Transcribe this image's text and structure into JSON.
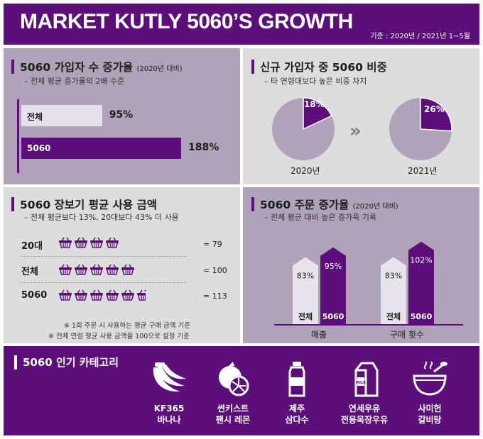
{
  "header": {
    "title": "MARKET KUTLY 5060’S GROWTH",
    "period": "기준 : 2020년 / 2021년 1~5월"
  },
  "panel1": {
    "title": "5060 가입자 수 증가율",
    "title_note": "(2020년 대비)",
    "subtitle": "– 전체 평균 증가율의 2배 수준",
    "bars": [
      {
        "label": "전체",
        "value_label": "95%"
      },
      {
        "label": "5060",
        "value_label": "188%"
      }
    ]
  },
  "panel2": {
    "title": "신규 가입자 중 5060 비중",
    "subtitle": "– 타 연령대보다 높은 비중 차지",
    "pies": [
      {
        "year": "2020년",
        "value_label": "18%"
      },
      {
        "year": "2021년",
        "value_label": "26%"
      }
    ]
  },
  "panel3": {
    "title": "5060 장보기 평균 사용 금액",
    "subtitle": "– 전체 평균보다 13%, 20대보다 43% 더 사용",
    "rows": [
      {
        "label": "20대",
        "value_label": "= 79"
      },
      {
        "label": "전체",
        "value_label": "= 100"
      },
      {
        "label": "5060",
        "value_label": "= 113"
      }
    ],
    "notes": [
      "※ 1회 주문 시 사용하는 평균 구매 금액 기준",
      "※ 전체 연령 평균 사용 금액을 100으로 설정 기준"
    ]
  },
  "panel4": {
    "title": "5060 주문 증가율",
    "title_note": "(2020년 대비)",
    "subtitle": "– 전체 평균 대비 높은 증가폭 기록",
    "groups": [
      {
        "category": "매출",
        "bars": [
          {
            "label": "전체",
            "value_label": "83%"
          },
          {
            "label": "5060",
            "value_label": "95%"
          }
        ]
      },
      {
        "category": "구매 횟수",
        "bars": [
          {
            "label": "전체",
            "value_label": "83%"
          },
          {
            "label": "5060",
            "value_label": "102%"
          }
        ]
      }
    ]
  },
  "categories": {
    "title": "5060 인기 카테고리",
    "items": [
      {
        "line1": "KF365",
        "line2": "바나나",
        "icon": "banana-icon"
      },
      {
        "line1": "썬키스트",
        "line2": "팬시 레몬",
        "icon": "lemon-icon"
      },
      {
        "line1": "제주",
        "line2": "삼다수",
        "icon": "water-bottle-icon"
      },
      {
        "line1": "연세우유",
        "line2": "전용목장우유",
        "icon": "milk-carton-icon"
      },
      {
        "line1": "사미헌",
        "line2": "갈비탕",
        "icon": "soup-bowl-icon"
      }
    ]
  },
  "colors": {
    "purple": "#5c0f7b",
    "light_purple": "#b0a3b9",
    "gray_panel": "#dddddd",
    "pie_light": "#b0a3b9"
  },
  "chart_data": [
    {
      "type": "bar",
      "title": "5060 가입자 수 증가율 (2020년 대비)",
      "categories": [
        "전체",
        "5060"
      ],
      "values": [
        95,
        188
      ],
      "unit": "%",
      "orientation": "horizontal"
    },
    {
      "type": "pie",
      "title": "신규 가입자 중 5060 비중",
      "categories": [
        "2020년",
        "2021년"
      ],
      "values": [
        18,
        26
      ],
      "unit": "%"
    },
    {
      "type": "bar",
      "title": "5060 장보기 평균 사용 금액",
      "categories": [
        "20대",
        "전체",
        "5060"
      ],
      "values": [
        79,
        100,
        113
      ],
      "unit": "index (전체=100)"
    },
    {
      "type": "bar",
      "title": "5060 주문 증가율 (2020년 대비)",
      "categories": [
        "매출",
        "구매 횟수"
      ],
      "series": [
        {
          "name": "전체",
          "values": [
            83,
            83
          ]
        },
        {
          "name": "5060",
          "values": [
            95,
            102
          ]
        }
      ],
      "unit": "%"
    }
  ]
}
